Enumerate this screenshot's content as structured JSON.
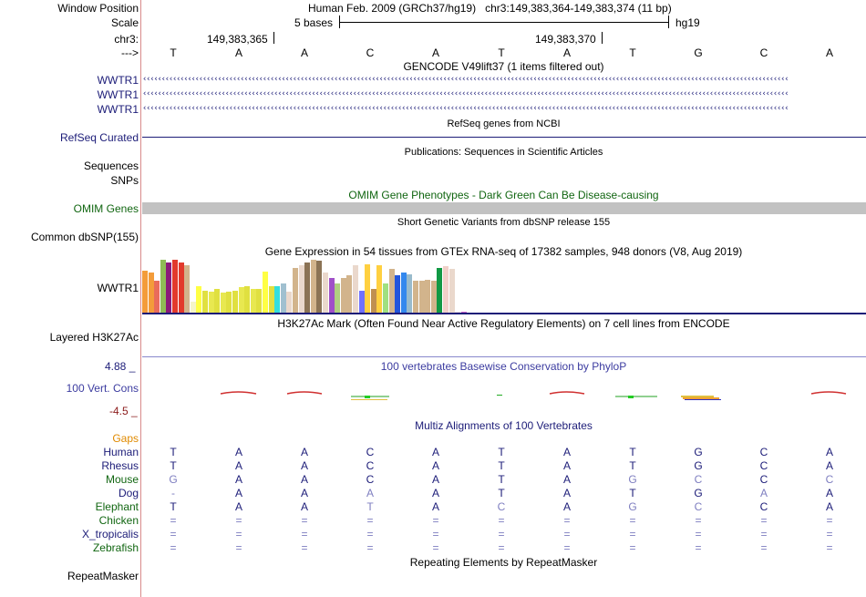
{
  "header": {
    "window_position_label": "Window Position",
    "window_position_value": "Human Feb. 2009 (GRCh37/hg19)   chr3:149,383,364-149,383,374 (11 bp)",
    "scale_label": "Scale",
    "scale_text": "5 bases",
    "scale_assembly": "hg19",
    "chr_label": "chr3:",
    "coord_1": "149,383,365",
    "coord_2": "149,383,370",
    "strand_label": "--->"
  },
  "reference_bases": [
    "T",
    "A",
    "A",
    "C",
    "A",
    "T",
    "A",
    "T",
    "G",
    "C",
    "A"
  ],
  "tracks": {
    "gencode_title": "GENCODE V49lift37 (1 items filtered out)",
    "gencode_rows": [
      "WWTR1",
      "WWTR1",
      "WWTR1"
    ],
    "refseq_title": "RefSeq genes from NCBI",
    "refseq_label": "RefSeq Curated",
    "pubs_title": "Publications: Sequences in Scientific Articles",
    "pubs_label_1": "Sequences",
    "pubs_label_2": "SNPs",
    "omim_title": "OMIM Gene Phenotypes - Dark Green Can Be Disease-causing",
    "omim_label": "OMIM Genes",
    "dbsnp_title": "Short Genetic Variants from dbSNP release 155",
    "dbsnp_label": "Common dbSNP(155)",
    "gtex_title": "Gene Expression in 54 tissues from GTEx RNA-seq of 17382 samples, 948 donors (V8, Aug 2019)",
    "gtex_label": "WWTR1",
    "h3k27_title": "H3K27Ac Mark (Often Found Near Active Regulatory Elements) on 7 cell lines from ENCODE",
    "h3k27_label": "Layered H3K27Ac",
    "cons_title": "100 vertebrates Basewise Conservation by PhyloP",
    "cons_label": "100 Vert. Cons",
    "cons_max": "4.88 _",
    "cons_min": "-4.5 _",
    "multiz_title": "Multiz Alignments of 100 Vertebrates",
    "gaps_label": "Gaps",
    "rmsk_title": "Repeating Elements by RepeatMasker",
    "rmsk_label": "RepeatMasker"
  },
  "gtex_colors": [
    "#f39c3a",
    "#f39c3a",
    "#e96c5b",
    "#8fbc55",
    "#8b1a7a",
    "#e23a2c",
    "#e23a2c",
    "#d2b48c",
    "#f5f5c8",
    "#ffff44",
    "#e0e040",
    "#e8e850",
    "#e0e040",
    "#e8e850",
    "#e0e040",
    "#e0e040",
    "#e8e850",
    "#e0e040",
    "#e8e850",
    "#e0e040",
    "#ffff44",
    "#e0e040",
    "#33dede",
    "#a0c0d0",
    "#ead8cc",
    "#d2b48c",
    "#ead8cc",
    "#8b7355",
    "#d2b48c",
    "#8b7355",
    "#ead8cc",
    "#a050c8",
    "#b0d080",
    "#d2b48c",
    "#d2b48c",
    "#ead8cc",
    "#7070ff",
    "#ffd040",
    "#c09050",
    "#ffd040",
    "#a0e080",
    "#d2b48c",
    "#2255dd",
    "#3388ee",
    "#99bbcc",
    "#d2b48c",
    "#d2b48c",
    "#d2b48c",
    "#d2b48c",
    "#119944",
    "#f0d0c8",
    "#ead8cc",
    "#e8d8e0",
    "#cc66cc"
  ],
  "gtex_values": [
    0.8,
    0.75,
    0.6,
    1.0,
    0.95,
    1.0,
    0.95,
    0.9,
    0.2,
    0.5,
    0.42,
    0.4,
    0.45,
    0.38,
    0.4,
    0.42,
    0.48,
    0.5,
    0.45,
    0.45,
    0.78,
    0.5,
    0.5,
    0.55,
    0.4,
    0.85,
    0.9,
    0.95,
    1.0,
    0.98,
    0.75,
    0.65,
    0.55,
    0.65,
    0.7,
    0.9,
    0.42,
    0.92,
    0.45,
    0.9,
    0.55,
    0.82,
    0.7,
    0.75,
    0.72,
    0.6,
    0.6,
    0.62,
    0.6,
    0.85,
    0.88,
    0.82,
    0.02,
    0.02
  ],
  "species": [
    {
      "name": "Human",
      "color": "#1c1c78",
      "bases": [
        "T",
        "A",
        "A",
        "C",
        "A",
        "T",
        "A",
        "T",
        "G",
        "C",
        "A"
      ],
      "light": [
        false,
        false,
        false,
        false,
        false,
        false,
        false,
        false,
        false,
        false,
        false
      ]
    },
    {
      "name": "Rhesus",
      "color": "#1c1c78",
      "bases": [
        "T",
        "A",
        "A",
        "C",
        "A",
        "T",
        "A",
        "T",
        "G",
        "C",
        "A"
      ],
      "light": [
        false,
        false,
        false,
        false,
        false,
        false,
        false,
        false,
        false,
        false,
        false
      ]
    },
    {
      "name": "Mouse",
      "color": "#116611",
      "bases": [
        "G",
        "A",
        "A",
        "C",
        "A",
        "T",
        "A",
        "G",
        "C",
        "C",
        "C"
      ],
      "light": [
        true,
        false,
        false,
        false,
        false,
        false,
        false,
        true,
        true,
        false,
        true
      ]
    },
    {
      "name": "Dog",
      "color": "#1c1c78",
      "bases": [
        "-",
        "A",
        "A",
        "A",
        "A",
        "T",
        "A",
        "T",
        "G",
        "A",
        "A"
      ],
      "light": [
        true,
        false,
        false,
        true,
        false,
        false,
        false,
        false,
        false,
        true,
        false
      ]
    },
    {
      "name": "Elephant",
      "color": "#116611",
      "bases": [
        "T",
        "A",
        "A",
        "T",
        "A",
        "C",
        "A",
        "G",
        "C",
        "C",
        "A"
      ],
      "light": [
        false,
        false,
        false,
        true,
        false,
        true,
        false,
        true,
        true,
        false,
        false
      ]
    },
    {
      "name": "Chicken",
      "color": "#116611",
      "bases": [
        "=",
        "=",
        "=",
        "=",
        "=",
        "=",
        "=",
        "=",
        "=",
        "=",
        "="
      ],
      "light": [
        true,
        true,
        true,
        true,
        true,
        true,
        true,
        true,
        true,
        true,
        true
      ]
    },
    {
      "name": "X_tropicalis",
      "color": "#1c1c78",
      "bases": [
        "=",
        "=",
        "=",
        "=",
        "=",
        "=",
        "=",
        "=",
        "=",
        "=",
        "="
      ],
      "light": [
        true,
        true,
        true,
        true,
        true,
        true,
        true,
        true,
        true,
        true,
        true
      ]
    },
    {
      "name": "Zebrafish",
      "color": "#116611",
      "bases": [
        "=",
        "=",
        "=",
        "=",
        "=",
        "=",
        "=",
        "=",
        "=",
        "=",
        "="
      ],
      "light": [
        true,
        true,
        true,
        true,
        true,
        true,
        true,
        true,
        true,
        true,
        true
      ]
    }
  ],
  "colors": {
    "navy": "#1c1c78",
    "green": "#116611",
    "gaps": "#e08a00",
    "light_base": "#7e7ec0",
    "separator": "#d88a8a",
    "omim_bar": "#c2c2c2"
  }
}
